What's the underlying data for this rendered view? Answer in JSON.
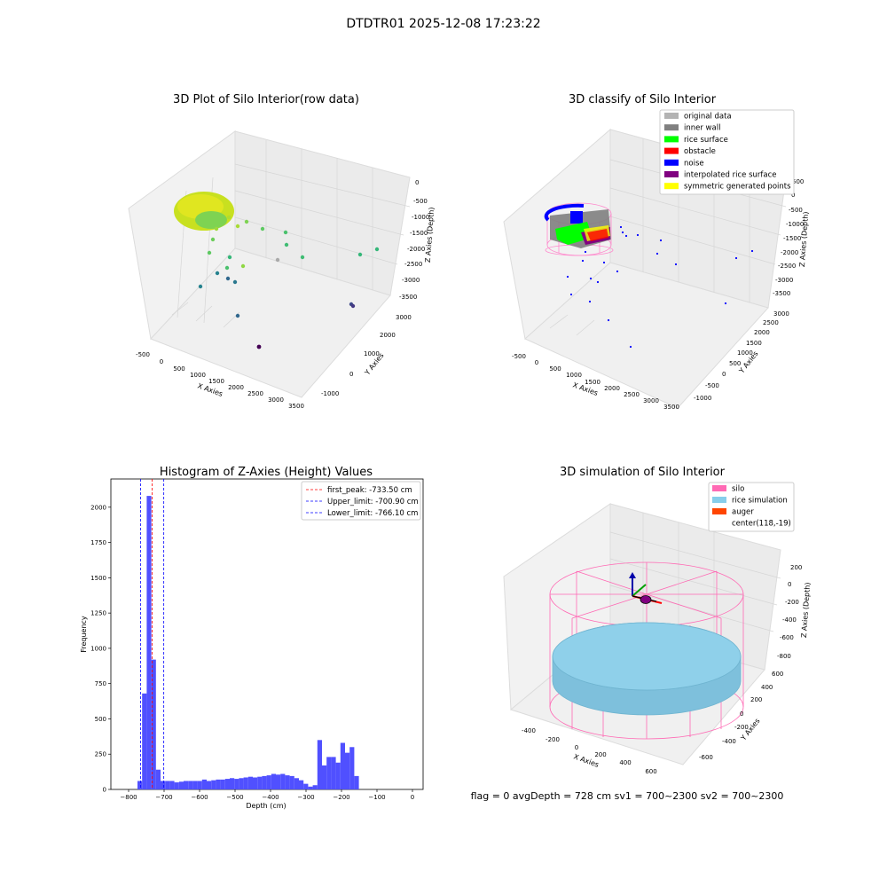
{
  "figure": {
    "suptitle": "DTDTR01 2025-12-08 17:23:22",
    "footer": "flag = 0     avgDepth = 728 cm  sv1 = 700~2300  sv2 = 700~2300"
  },
  "panels": {
    "raw": {
      "title": "3D Plot of Silo Interior(row data)",
      "xlabel": "X Axies",
      "ylabel": "Y Axies",
      "zlabel": "Z Axies (Depth)",
      "xticks": [
        "-500",
        "0",
        "500",
        "1000",
        "1500",
        "2000",
        "2500",
        "3000",
        "3500"
      ],
      "yticks": [
        "-1000",
        "0",
        "1000",
        "2000",
        "3000"
      ],
      "zticks": [
        "0",
        "-500",
        "-1000",
        "-1500",
        "-2000",
        "-2500",
        "-3000",
        "-3500"
      ]
    },
    "classify": {
      "title": "3D classify of Silo Interior",
      "xlabel": "X Axies",
      "ylabel": "Y Axies",
      "zlabel": "Z Axies (Depth)",
      "xticks": [
        "-500",
        "0",
        "500",
        "1000",
        "1500",
        "2000",
        "2500",
        "3000",
        "3500"
      ],
      "yticks": [
        "-1000",
        "-500",
        "0",
        "500",
        "1000",
        "1500",
        "2000",
        "2500",
        "3000"
      ],
      "zticks": [
        "500",
        "0",
        "-500",
        "-1000",
        "-1500",
        "-2000",
        "-2500",
        "-3000",
        "-3500"
      ],
      "legend": [
        {
          "label": "original data",
          "color": "#b3b3b3"
        },
        {
          "label": "inner wall",
          "color": "#808080"
        },
        {
          "label": "rice surface",
          "color": "#00ff00"
        },
        {
          "label": "obstacle",
          "color": "#ff0000"
        },
        {
          "label": "noise",
          "color": "#0000ff"
        },
        {
          "label": "interpolated rice surface",
          "color": "#800080"
        },
        {
          "label": "symmetric generated points",
          "color": "#ffff00"
        }
      ]
    },
    "simulation": {
      "title": "3D simulation of Silo Interior",
      "xlabel": "X Axies",
      "ylabel": "Y Axies",
      "zlabel": "Z Axies (Depth)",
      "xticks": [
        "-400",
        "-200",
        "0",
        "200",
        "400",
        "600"
      ],
      "yticks": [
        "-600",
        "-400",
        "-200",
        "0",
        "200",
        "400",
        "600"
      ],
      "zticks": [
        "200",
        "0",
        "-200",
        "-400",
        "-600",
        "-800"
      ],
      "legend": [
        {
          "label": "silo",
          "color": "#ff69b4"
        },
        {
          "label": "rice simulation",
          "color": "#87ceeb"
        },
        {
          "label": "auger",
          "color": "#ff4500"
        },
        {
          "label": "center(118,-19)",
          "color": ""
        }
      ]
    }
  },
  "chart_data": [
    {
      "type": "scatter",
      "title": "3D Plot of Silo Interior(row data)",
      "xlabel": "X Axies",
      "ylabel": "Y Axies",
      "zlabel": "Z Axies (Depth)",
      "xlim": [
        -600,
        3600
      ],
      "ylim": [
        -1300,
        3300
      ],
      "zlim": [
        -3800,
        200
      ],
      "grid": true
    },
    {
      "type": "scatter",
      "title": "3D classify of Silo Interior",
      "xlabel": "X Axies",
      "ylabel": "Y Axies",
      "zlabel": "Z Axies (Depth)",
      "xlim": [
        -600,
        3600
      ],
      "ylim": [
        -1300,
        3300
      ],
      "zlim": [
        -3800,
        600
      ],
      "legend_position": "top-right",
      "grid": true
    },
    {
      "type": "bar",
      "title": "Histogram of Z-Axies (Height) Values",
      "xlabel": "Depth (cm)",
      "ylabel": "Frequency",
      "xlim": [
        -850,
        30
      ],
      "ylim": [
        0,
        2200
      ],
      "xticks": [
        -800,
        -700,
        -600,
        -500,
        -400,
        -300,
        -200,
        -100,
        0
      ],
      "yticks": [
        0,
        250,
        500,
        750,
        1000,
        1250,
        1500,
        1750,
        2000
      ],
      "bin_edges": [
        -775,
        -762,
        -749,
        -736,
        -723,
        -710,
        -697,
        -684,
        -671,
        -658,
        -645,
        -632,
        -619,
        -606,
        -593,
        -580,
        -567,
        -554,
        -541,
        -528,
        -515,
        -502,
        -489,
        -476,
        -463,
        -450,
        -437,
        -424,
        -411,
        -398,
        -385,
        -372,
        -359,
        -346,
        -333,
        -320,
        -307,
        -294,
        -281,
        -268,
        -255,
        -242,
        -229,
        -216,
        -203,
        -190,
        -177,
        -164,
        -151,
        -138,
        -125,
        -112,
        -99,
        -86,
        -73,
        -60,
        -47,
        -34,
        -21,
        -8,
        5
      ],
      "values": [
        60,
        680,
        2080,
        920,
        140,
        60,
        60,
        60,
        50,
        55,
        60,
        60,
        60,
        60,
        70,
        60,
        65,
        70,
        70,
        75,
        80,
        75,
        80,
        85,
        90,
        85,
        90,
        95,
        100,
        110,
        105,
        110,
        100,
        95,
        80,
        65,
        40,
        20,
        30,
        350,
        170,
        230,
        230,
        190,
        330,
        260,
        300,
        95,
        0,
        0,
        0,
        0,
        0,
        0,
        0,
        0,
        0,
        0,
        0,
        0
      ],
      "reference_lines": [
        {
          "label": "first_peak: -733.50 cm",
          "x": -733.5,
          "color": "#ff0000"
        },
        {
          "label": "Upper_limit: -700.90 cm",
          "x": -700.9,
          "color": "#0000ff"
        },
        {
          "label": "Lower_limit: -766.10 cm",
          "x": -766.1,
          "color": "#0000ff"
        }
      ],
      "bar_color": "#5050ff",
      "legend_position": "top-right"
    },
    {
      "type": "scatter",
      "title": "3D simulation of Silo Interior",
      "xlabel": "X Axies",
      "ylabel": "Y Axies",
      "zlabel": "Z Axies (Depth)",
      "xlim": [
        -500,
        700
      ],
      "ylim": [
        -700,
        700
      ],
      "zlim": [
        -900,
        300
      ],
      "legend_position": "top-right",
      "grid": true
    }
  ]
}
